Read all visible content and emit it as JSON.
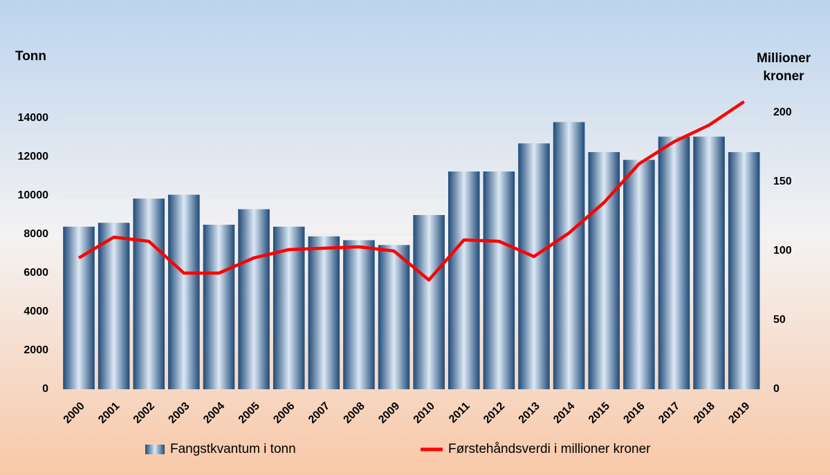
{
  "chart_data": {
    "type": "bar",
    "y_label": "Tonn",
    "y2_label": "Millioner kroner",
    "categories": [
      "2000",
      "2001",
      "2002",
      "2003",
      "2004",
      "2005",
      "2006",
      "2007",
      "2008",
      "2009",
      "2010",
      "2011",
      "2012",
      "2013",
      "2014",
      "2015",
      "2016",
      "2017",
      "2018",
      "2019"
    ],
    "series": [
      {
        "name": "Fangstkvantum i tonn",
        "type": "bar",
        "color": "#2e5b8a",
        "values": [
          8400,
          8600,
          9850,
          10050,
          8500,
          9300,
          8400,
          7900,
          7700,
          7450,
          9000,
          11250,
          11250,
          12700,
          13800,
          12250,
          11850,
          13050,
          13050,
          12250
        ]
      },
      {
        "name": "Førstehåndsverdi i millioner kroner",
        "type": "line",
        "axis": "y2",
        "color": "#ff0000",
        "values": [
          95,
          110,
          107,
          84,
          84,
          95,
          101,
          102,
          103,
          100,
          79,
          108,
          107,
          96,
          113,
          135,
          163,
          179,
          191,
          208
        ]
      }
    ],
    "ylim": [
      0,
      15000
    ],
    "yticks": [
      0,
      2000,
      4000,
      6000,
      8000,
      10000,
      12000,
      14000
    ],
    "y2lim": [
      0,
      210
    ],
    "y2ticks": [
      0,
      50,
      100,
      150,
      200
    ],
    "grid": true
  }
}
